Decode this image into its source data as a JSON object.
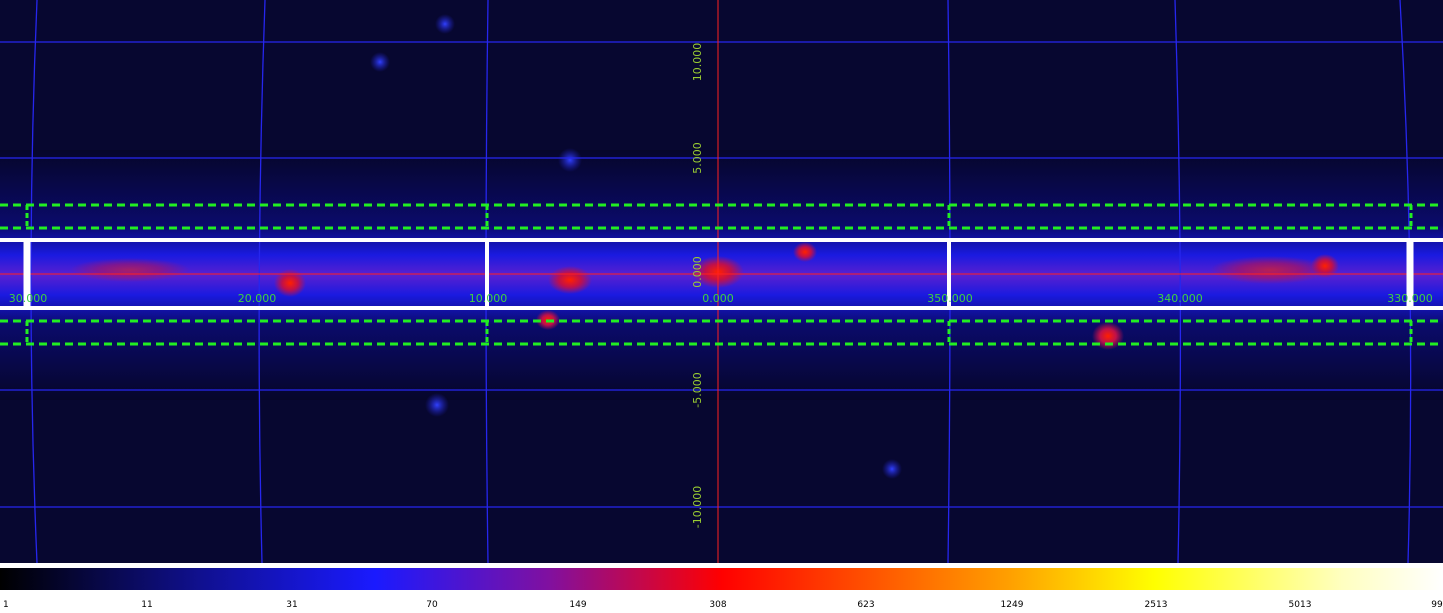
{
  "x_labels": [
    "30.000",
    "20.000",
    "10.000",
    "0.000",
    "350.000",
    "340.000",
    "330.000"
  ],
  "y_labels": [
    "10.000",
    "5.000",
    "0.000",
    "-5.000",
    "-10.000"
  ],
  "colorbar_labels": [
    "1",
    "11",
    "31",
    "70",
    "149",
    "308",
    "623",
    "1249",
    "2513",
    "5013",
    "99"
  ]
}
